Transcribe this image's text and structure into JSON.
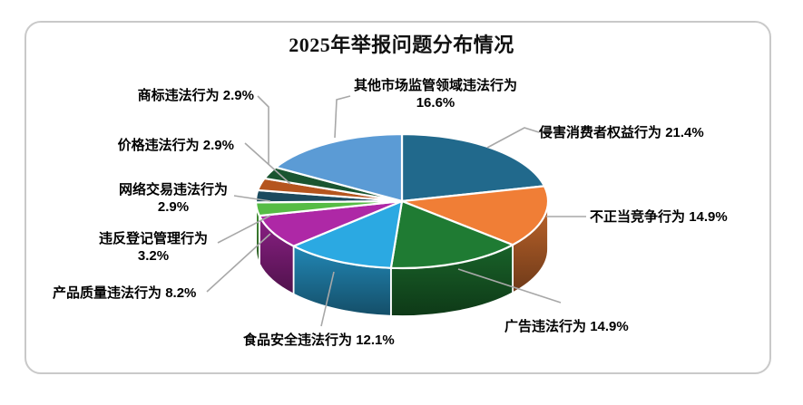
{
  "chart_data": {
    "type": "pie",
    "style": "3d",
    "title": "2025年举报问题分布情况",
    "unit": "%",
    "start_angle_deg": 0,
    "direction": "clockwise",
    "legend_position": "none",
    "labels": "category and percent shown with gray leader lines",
    "categories": [
      "侵害消费者权益行为",
      "不正当竞争行为",
      "广告违法行为",
      "食品安全违法行为",
      "产品质量违法行为",
      "违反登记管理行为",
      "网络交易违法行为",
      "价格违法行为",
      "商标违法行为",
      "其他市场监管领域违法行为"
    ],
    "values": [
      21.4,
      14.9,
      14.9,
      12.1,
      8.2,
      3.2,
      2.9,
      2.9,
      2.9,
      16.6
    ],
    "colors": [
      "#21698C",
      "#F07E36",
      "#1F7B33",
      "#2BA9E2",
      "#AE28A6",
      "#56BC45",
      "#1B4A5E",
      "#B5551E",
      "#1A5530",
      "#5B9BD5"
    ],
    "label_text_color": "#000000",
    "leader_line_color": "#a8a8a8",
    "slice_gap_color": "#ffffff"
  }
}
